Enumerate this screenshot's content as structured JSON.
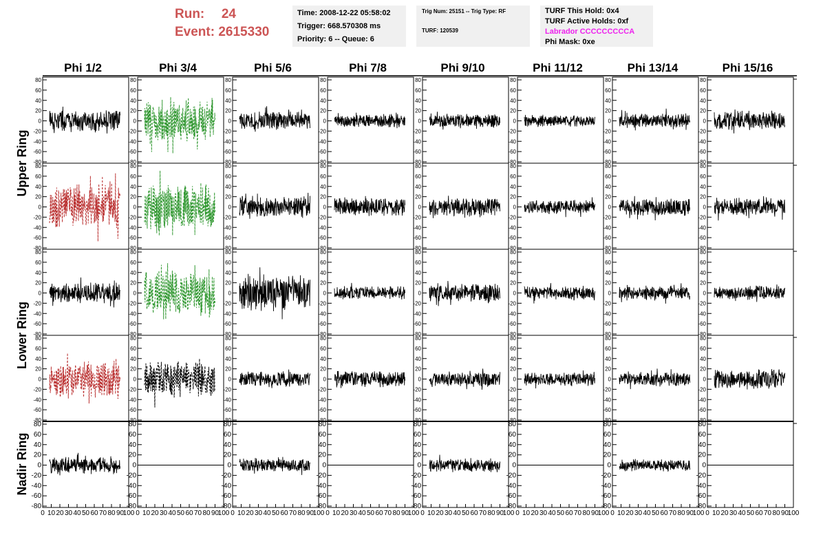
{
  "header": {
    "run_label": "Run:",
    "run_value": "24",
    "event_label": "Event:",
    "event_value": "2615330"
  },
  "info_box_1": {
    "time": "Time: 2008-12-22 05:58:02",
    "trigger": "Trigger: 668.570308 ms",
    "priority": "Priority: 6 -- Queue: 6"
  },
  "info_box_2": {
    "trig": "Trig Num: 25151 -- Trig Type: RF",
    "turf": "TURF: 120539"
  },
  "info_box_3": {
    "this_hold": "TURF This Hold: 0x4",
    "active_holds": "TURF Active Holds: 0xf",
    "labrador": "Labrador CCCCCCCCCA",
    "phi_mask": "Phi Mask: 0xe"
  },
  "colors": {
    "run_text": "#cc5555",
    "labrador_text": "#ee22ee",
    "trace_default": "#000000",
    "trace_red": "#bb3333",
    "trace_green": "#339933",
    "info_box_bg": "#f0f0f0"
  },
  "grid": {
    "column_titles": [
      "Phi 1/2",
      "Phi 3/4",
      "Phi 5/6",
      "Phi 7/8",
      "Phi 9/10",
      "Phi 11/12",
      "Phi 13/14",
      "Phi 15/16"
    ],
    "ring_labels": [
      "Upper Ring",
      "Lower Ring",
      "Nadir Ring"
    ],
    "y_ticks": [
      "-80",
      "-60",
      "-40",
      "-20",
      "0",
      "20",
      "40",
      "60",
      "80"
    ],
    "x_ticks": [
      "0",
      "10",
      "20",
      "30",
      "40",
      "50",
      "60",
      "70",
      "80",
      "90",
      "100"
    ],
    "x_range": [
      0,
      100
    ],
    "y_range": [
      -80,
      80
    ]
  },
  "chart_data": {
    "type": "line",
    "rows": [
      {
        "row": 1,
        "traces": [
          {
            "style": "solid",
            "color": "black",
            "amp": 22,
            "seed": 1
          },
          {
            "style": "dashed",
            "color": "green",
            "amp": 48,
            "seed": 2
          },
          {
            "style": "solid",
            "color": "black",
            "amp": 20,
            "seed": 3
          },
          {
            "style": "solid",
            "color": "black",
            "amp": 14,
            "seed": 4
          },
          {
            "style": "solid",
            "color": "black",
            "amp": 14,
            "seed": 5
          },
          {
            "style": "solid",
            "color": "black",
            "amp": 12,
            "seed": 6
          },
          {
            "style": "solid",
            "color": "black",
            "amp": 15,
            "seed": 7
          },
          {
            "style": "solid",
            "color": "black",
            "amp": 20,
            "seed": 8
          }
        ]
      },
      {
        "row": 2,
        "traces": [
          {
            "style": "dashed",
            "color": "red",
            "amp": 48,
            "seed": 9
          },
          {
            "style": "dashed",
            "color": "green",
            "amp": 50,
            "seed": 10
          },
          {
            "style": "solid",
            "color": "black",
            "amp": 22,
            "seed": 11
          },
          {
            "style": "solid",
            "color": "black",
            "amp": 20,
            "seed": 12
          },
          {
            "style": "solid",
            "color": "black",
            "amp": 20,
            "seed": 13
          },
          {
            "style": "solid",
            "color": "black",
            "amp": 14,
            "seed": 14
          },
          {
            "style": "solid",
            "color": "black",
            "amp": 18,
            "seed": 15
          },
          {
            "style": "solid",
            "color": "black",
            "amp": 18,
            "seed": 16
          }
        ]
      },
      {
        "row": 3,
        "traces": [
          {
            "style": "solid",
            "color": "black",
            "amp": 22,
            "seed": 17
          },
          {
            "style": "dashed",
            "color": "green",
            "amp": 48,
            "seed": 18
          },
          {
            "style": "solid",
            "color": "black",
            "amp": 38,
            "seed": 19
          },
          {
            "style": "solid",
            "color": "black",
            "amp": 14,
            "seed": 20
          },
          {
            "style": "solid",
            "color": "black",
            "amp": 20,
            "seed": 21
          },
          {
            "style": "solid",
            "color": "black",
            "amp": 14,
            "seed": 22
          },
          {
            "style": "solid",
            "color": "black",
            "amp": 15,
            "seed": 23
          },
          {
            "style": "solid",
            "color": "black",
            "amp": 14,
            "seed": 24
          }
        ]
      },
      {
        "row": 4,
        "traces": [
          {
            "style": "dashed",
            "color": "red",
            "amp": 40,
            "seed": 25
          },
          {
            "style": "dashed",
            "color": "black",
            "amp": 38,
            "seed": 26
          },
          {
            "style": "solid",
            "color": "black",
            "amp": 16,
            "seed": 27
          },
          {
            "style": "solid",
            "color": "black",
            "amp": 18,
            "seed": 28
          },
          {
            "style": "solid",
            "color": "black",
            "amp": 16,
            "seed": 29
          },
          {
            "style": "solid",
            "color": "black",
            "amp": 14,
            "seed": 30
          },
          {
            "style": "solid",
            "color": "black",
            "amp": 15,
            "seed": 31
          },
          {
            "style": "solid",
            "color": "black",
            "amp": 20,
            "seed": 32
          }
        ]
      },
      {
        "row": 5,
        "traces": [
          {
            "style": "solid",
            "color": "black",
            "amp": 18,
            "seed": 33
          },
          {
            "style": "flat",
            "color": "black",
            "amp": 0,
            "seed": 34
          },
          {
            "style": "solid",
            "color": "black",
            "amp": 14,
            "seed": 35
          },
          {
            "style": "flat",
            "color": "black",
            "amp": 0,
            "seed": 36
          },
          {
            "style": "solid",
            "color": "black",
            "amp": 14,
            "seed": 37
          },
          {
            "style": "flat",
            "color": "black",
            "amp": 0,
            "seed": 38
          },
          {
            "style": "solid",
            "color": "black",
            "amp": 12,
            "seed": 39
          },
          {
            "style": "flat",
            "color": "black",
            "amp": 0,
            "seed": 40
          }
        ]
      }
    ]
  }
}
